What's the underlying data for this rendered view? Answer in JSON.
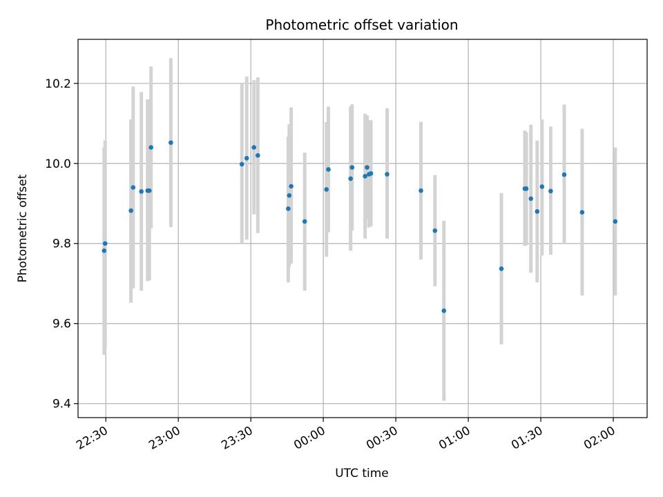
{
  "chart_data": {
    "type": "scatter",
    "title": "Photometric offset variation",
    "xlabel": "UTC time",
    "ylabel": "Photometric offset",
    "x_ticks": [
      "22:30",
      "23:00",
      "23:30",
      "00:00",
      "00:30",
      "01:00",
      "01:30",
      "02:00"
    ],
    "x_tick_minutes": [
      0,
      30,
      60,
      90,
      120,
      150,
      180,
      210
    ],
    "xlim_minutes": [
      -11.5,
      224
    ],
    "x_reference_time": "22:30",
    "y_ticks": [
      9.4,
      9.6,
      9.8,
      10.0,
      10.2
    ],
    "ylim": [
      9.365,
      10.31
    ],
    "grid": true,
    "marker_color": "#1f77b4",
    "errorbar_color": "#d3d3d3",
    "points": [
      {
        "t": -0.7,
        "y": 9.782,
        "lo": 9.522,
        "hi": 10.04
      },
      {
        "t": -0.3,
        "y": 9.8,
        "lo": 9.54,
        "hi": 10.057
      },
      {
        "t": 10.4,
        "y": 9.882,
        "lo": 9.652,
        "hi": 10.11
      },
      {
        "t": 11.3,
        "y": 9.94,
        "lo": 9.688,
        "hi": 10.192
      },
      {
        "t": 14.7,
        "y": 9.93,
        "lo": 9.682,
        "hi": 10.178
      },
      {
        "t": 17.3,
        "y": 9.932,
        "lo": 9.706,
        "hi": 10.16
      },
      {
        "t": 18.0,
        "y": 9.932,
        "lo": 9.708,
        "hi": 10.16
      },
      {
        "t": 18.7,
        "y": 10.04,
        "lo": 9.838,
        "hi": 10.242
      },
      {
        "t": 26.9,
        "y": 10.052,
        "lo": 9.841,
        "hi": 10.263
      },
      {
        "t": 56.3,
        "y": 9.998,
        "lo": 9.8,
        "hi": 10.2
      },
      {
        "t": 58.3,
        "y": 10.013,
        "lo": 9.81,
        "hi": 10.217
      },
      {
        "t": 61.3,
        "y": 10.04,
        "lo": 9.873,
        "hi": 10.208
      },
      {
        "t": 62.9,
        "y": 10.02,
        "lo": 9.826,
        "hi": 10.215
      },
      {
        "t": 75.5,
        "y": 9.887,
        "lo": 9.703,
        "hi": 10.067
      },
      {
        "t": 75.9,
        "y": 9.92,
        "lo": 9.742,
        "hi": 10.098
      },
      {
        "t": 76.7,
        "y": 9.943,
        "lo": 9.75,
        "hi": 10.14
      },
      {
        "t": 82.3,
        "y": 9.855,
        "lo": 9.682,
        "hi": 10.027
      },
      {
        "t": 91.3,
        "y": 9.935,
        "lo": 9.767,
        "hi": 10.103
      },
      {
        "t": 92.1,
        "y": 9.985,
        "lo": 9.828,
        "hi": 10.142
      },
      {
        "t": 101.3,
        "y": 9.962,
        "lo": 9.782,
        "hi": 10.142
      },
      {
        "t": 101.9,
        "y": 9.99,
        "lo": 9.832,
        "hi": 10.148
      },
      {
        "t": 107.3,
        "y": 9.968,
        "lo": 9.812,
        "hi": 10.124
      },
      {
        "t": 108.1,
        "y": 9.99,
        "lo": 9.86,
        "hi": 10.12
      },
      {
        "t": 108.9,
        "y": 9.973,
        "lo": 9.84,
        "hi": 10.108
      },
      {
        "t": 109.7,
        "y": 9.975,
        "lo": 9.843,
        "hi": 10.108
      },
      {
        "t": 116.4,
        "y": 9.973,
        "lo": 9.812,
        "hi": 10.138
      },
      {
        "t": 130.4,
        "y": 9.932,
        "lo": 9.76,
        "hi": 10.104
      },
      {
        "t": 136.2,
        "y": 9.832,
        "lo": 9.693,
        "hi": 9.971
      },
      {
        "t": 139.9,
        "y": 9.632,
        "lo": 9.407,
        "hi": 9.857
      },
      {
        "t": 163.7,
        "y": 9.737,
        "lo": 9.548,
        "hi": 9.926
      },
      {
        "t": 173.4,
        "y": 9.937,
        "lo": 9.794,
        "hi": 10.082
      },
      {
        "t": 174.0,
        "y": 9.937,
        "lo": 9.796,
        "hi": 10.078
      },
      {
        "t": 175.9,
        "y": 9.912,
        "lo": 9.727,
        "hi": 10.097
      },
      {
        "t": 178.5,
        "y": 9.88,
        "lo": 9.703,
        "hi": 10.057
      },
      {
        "t": 180.5,
        "y": 9.942,
        "lo": 9.77,
        "hi": 10.11
      },
      {
        "t": 184.1,
        "y": 9.931,
        "lo": 9.772,
        "hi": 10.092
      },
      {
        "t": 189.7,
        "y": 9.972,
        "lo": 9.8,
        "hi": 10.147
      },
      {
        "t": 197.1,
        "y": 9.878,
        "lo": 9.67,
        "hi": 10.087
      },
      {
        "t": 210.8,
        "y": 9.855,
        "lo": 9.67,
        "hi": 10.04
      }
    ]
  }
}
